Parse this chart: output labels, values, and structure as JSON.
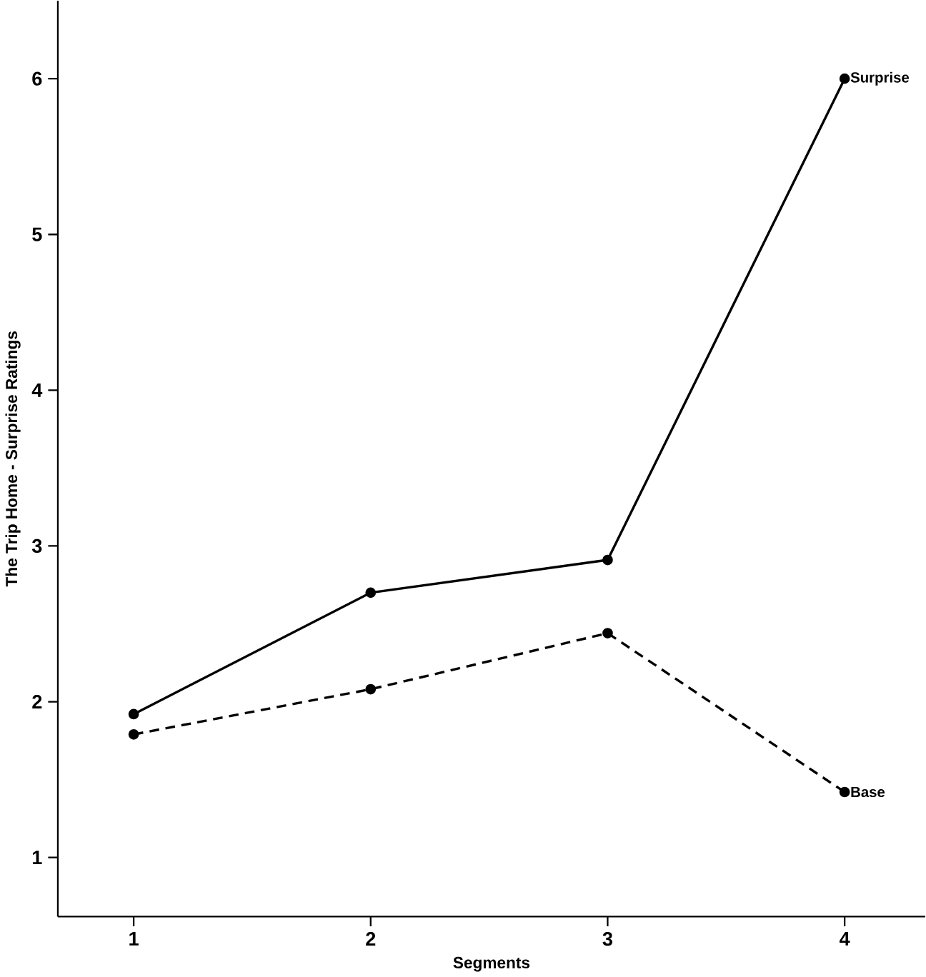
{
  "chart_data": {
    "type": "line",
    "xlabel": "Segments",
    "ylabel": "The Trip Home - Surprise Ratings",
    "x": [
      1,
      2,
      3,
      4
    ],
    "series": [
      {
        "name": "Surprise",
        "color": "#000000",
        "line_style": "solid",
        "values": [
          1.92,
          2.7,
          2.91,
          6.0
        ]
      },
      {
        "name": "Base",
        "color": "#000000",
        "line_style": "dashed",
        "values": [
          1.79,
          2.08,
          2.44,
          1.42
        ]
      }
    ],
    "xlim": [
      0.68,
      4.34
    ],
    "ylim": [
      0.62,
      6.5
    ],
    "xticks": [
      1,
      2,
      3,
      4
    ],
    "yticks": [
      1,
      2,
      3,
      4,
      5,
      6
    ],
    "marker": "circle",
    "grid": false,
    "legend": false
  }
}
